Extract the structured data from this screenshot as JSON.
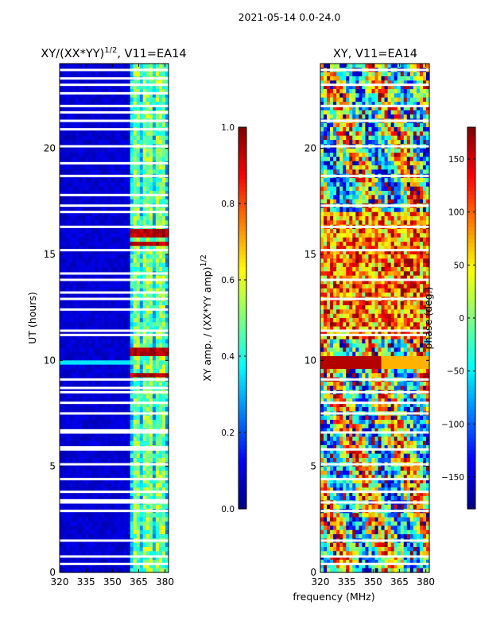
{
  "figure_title": "2021-05-14 0.0-24.0",
  "chart_data": [
    {
      "type": "heatmap",
      "title_main": "XY/(XX*YY)",
      "title_sup": "1/2",
      "title_tail": ", V11=EA14",
      "xlabel": "",
      "ylabel": "UT (hours)",
      "xlim": [
        320,
        382
      ],
      "ylim": [
        0,
        24
      ],
      "xticks": [
        320,
        335,
        350,
        365,
        380
      ],
      "yticks": [
        0,
        5,
        10,
        15,
        20
      ],
      "colorbar": {
        "label_main": "XY amp. / (XX*YY amp)",
        "label_sup": "1/2",
        "range": [
          0.0,
          1.0
        ],
        "ticks": [
          "0.0",
          "0.2",
          "0.4",
          "0.6",
          "0.8",
          "1.0"
        ],
        "tick_values": [
          0.0,
          0.2,
          0.4,
          0.6,
          0.8,
          1.0
        ],
        "colormap": "jet"
      },
      "features": {
        "active_band_mhz": [
          360,
          382
        ],
        "channel_stripes_mhz": [
          362.5,
          365,
          367.5,
          370,
          372.5,
          375,
          377.5,
          380
        ],
        "background_value": 0.05,
        "band_value": 0.35,
        "hot_hours": [
          9.3,
          10.4,
          15.5,
          16.0
        ],
        "hot_value": 0.9,
        "flagged_hours": [
          0.4,
          0.75,
          1.5,
          2.9,
          3.3,
          3.4,
          3.8,
          4.4,
          5.1,
          5.8,
          5.9,
          6.6,
          6.7,
          7.5,
          8.0,
          8.5,
          8.7,
          9.1,
          11.2,
          11.4,
          12.4,
          12.9,
          13.2,
          13.8,
          14.1,
          15.2,
          16.3,
          17.0,
          17.3,
          17.8,
          18.7,
          19.3,
          20.1,
          20.9,
          21.3,
          21.7,
          22.0,
          22.6,
          23.0,
          23.3,
          23.7
        ]
      }
    },
    {
      "type": "heatmap",
      "title_main": "XY, V11=EA14",
      "title_sup": "",
      "title_tail": "",
      "xlabel": "frequency (MHz)",
      "ylabel": "",
      "xlim": [
        320,
        382
      ],
      "ylim": [
        0,
        24
      ],
      "xticks": [
        320,
        335,
        350,
        365,
        380
      ],
      "yticks": [
        0,
        5,
        10,
        15,
        20
      ],
      "colorbar": {
        "label_main": "phase (deg.)",
        "label_sup": "",
        "range": [
          -180,
          180
        ],
        "ticks": [
          "−150",
          "−100",
          "−50",
          "0",
          "50",
          "100",
          "150"
        ],
        "tick_values": [
          -150,
          -100,
          -50,
          0,
          50,
          100,
          150
        ],
        "colormap": "jet"
      },
      "features": {
        "phase_wrap": true,
        "red_band_hours": [
          9.6,
          10.2
        ],
        "flagged_hours": [
          0.4,
          0.75,
          1.5,
          2.9,
          3.3,
          3.8,
          4.4,
          5.1,
          5.8,
          6.6,
          7.5,
          8.0,
          8.5,
          9.1,
          11.2,
          11.4,
          12.9,
          13.8,
          15.2,
          16.3,
          17.3,
          18.7,
          20.1,
          21.3,
          22.0,
          23.0,
          23.7
        ]
      }
    }
  ]
}
